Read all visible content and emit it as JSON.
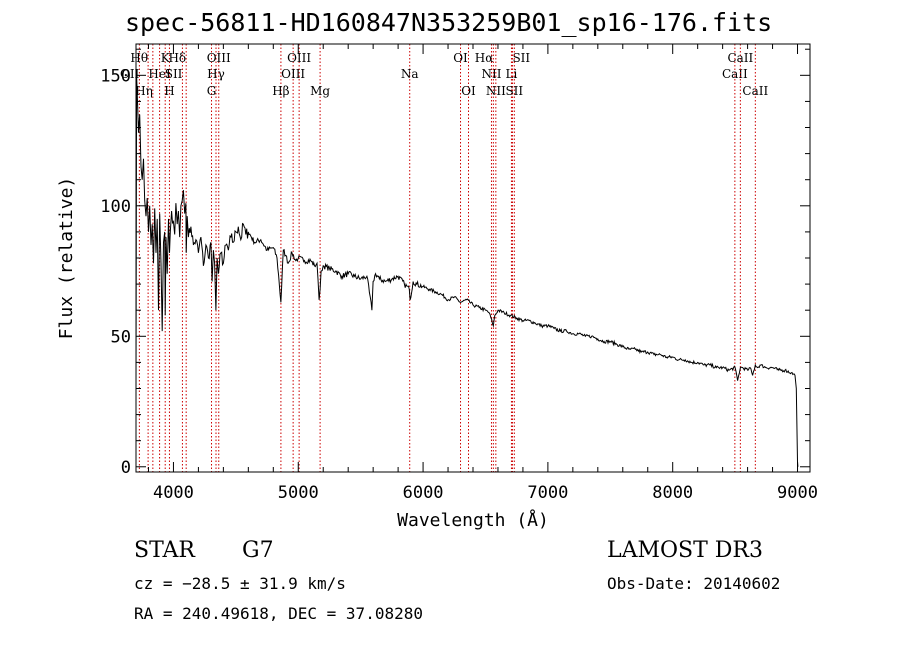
{
  "chart_data": {
    "type": "line",
    "title": "spec-56811-HD160847N353259B01_sp16-176.fits",
    "xlabel": "Wavelength (Å)",
    "ylabel": "Flux (relative)",
    "xlim": [
      3700,
      9100
    ],
    "ylim": [
      -2,
      162
    ],
    "x_ticks": [
      4000,
      5000,
      6000,
      7000,
      8000,
      9000
    ],
    "x_tick_labels": [
      "4000",
      "5000",
      "6000",
      "7000",
      "8000",
      "9000"
    ],
    "y_ticks": [
      0,
      50,
      100,
      150
    ],
    "y_tick_labels": [
      "0",
      "50",
      "100",
      "150"
    ],
    "grid": false,
    "series": [
      {
        "name": "Flux",
        "x": [
          3700,
          3705,
          3712,
          3720,
          3730,
          3740,
          3750,
          3760,
          3770,
          3780,
          3790,
          3800,
          3810,
          3820,
          3830,
          3840,
          3850,
          3860,
          3870,
          3880,
          3890,
          3900,
          3910,
          3920,
          3930,
          3934,
          3940,
          3950,
          3960,
          3968,
          3975,
          3985,
          4000,
          4010,
          4020,
          4030,
          4040,
          4050,
          4060,
          4070,
          4080,
          4090,
          4100,
          4102,
          4110,
          4120,
          4140,
          4160,
          4180,
          4200,
          4220,
          4240,
          4260,
          4280,
          4300,
          4310,
          4320,
          4330,
          4340,
          4350,
          4360,
          4380,
          4400,
          4420,
          4440,
          4460,
          4480,
          4500,
          4520,
          4540,
          4560,
          4580,
          4600,
          4650,
          4700,
          4750,
          4800,
          4830,
          4861,
          4880,
          4900,
          4920,
          4950,
          4980,
          5000,
          5050,
          5100,
          5130,
          5150,
          5167,
          5175,
          5183,
          5200,
          5250,
          5300,
          5350,
          5400,
          5450,
          5500,
          5550,
          5590,
          5600,
          5620,
          5650,
          5700,
          5750,
          5800,
          5850,
          5890,
          5896,
          5920,
          5950,
          6000,
          6050,
          6100,
          6150,
          6200,
          6250,
          6300,
          6350,
          6400,
          6450,
          6500,
          6530,
          6563,
          6575,
          6600,
          6650,
          6700,
          6750,
          6800,
          6850,
          6900,
          6950,
          7000,
          7050,
          7100,
          7150,
          7200,
          7250,
          7300,
          7350,
          7400,
          7450,
          7500,
          7550,
          7600,
          7650,
          7700,
          7750,
          7800,
          7850,
          7900,
          7950,
          8000,
          8050,
          8100,
          8150,
          8200,
          8250,
          8300,
          8350,
          8400,
          8450,
          8500,
          8520,
          8542,
          8560,
          8600,
          8620,
          8640,
          8662,
          8680,
          8700,
          8750,
          8800,
          8850,
          8900,
          8950,
          8980,
          8990,
          9000,
          9003
        ],
        "y": [
          30,
          150,
          140,
          128,
          135,
          115,
          110,
          118,
          102,
          96,
          103,
          90,
          100,
          85,
          93,
          78,
          99,
          82,
          95,
          60,
          97,
          78,
          52,
          86,
          90,
          58,
          88,
          74,
          95,
          82,
          90,
          98,
          94,
          89,
          101,
          93,
          98,
          88,
          100,
          102,
          106,
          97,
          101,
          82,
          96,
          88,
          92,
          85,
          87,
          82,
          88,
          77,
          85,
          80,
          86,
          71,
          83,
          78,
          60,
          80,
          74,
          82,
          78,
          85,
          83,
          88,
          86,
          90,
          92,
          87,
          93,
          89,
          90,
          86,
          87,
          83,
          84,
          80,
          63,
          83,
          81,
          78,
          82,
          79,
          80,
          79,
          79,
          77,
          78,
          64,
          68,
          75,
          77,
          76,
          75,
          73,
          74,
          73,
          72,
          73,
          60,
          71,
          74,
          72,
          71,
          72,
          73,
          70,
          68,
          64,
          71,
          70,
          69,
          68,
          67,
          66,
          64,
          65,
          63,
          64,
          62,
          61,
          60,
          59,
          54,
          58,
          60,
          59,
          58,
          57,
          56,
          56,
          55,
          54,
          54,
          53,
          52,
          52,
          51,
          51,
          50,
          50,
          49,
          48,
          48,
          47,
          46,
          45,
          45,
          44,
          44,
          43,
          43,
          42,
          42,
          41,
          41,
          40,
          40,
          39,
          39,
          38,
          38,
          37,
          38,
          33,
          38,
          38,
          37,
          38,
          35,
          39,
          38,
          39,
          38,
          38,
          37,
          37,
          36,
          35,
          30,
          2,
          0
        ]
      }
    ],
    "lines": [
      {
        "label": "OII",
        "x": 3727,
        "row": 1,
        "anchor": "end"
      },
      {
        "label": "Hθ",
        "x": 3797,
        "row": 0,
        "anchor": "end"
      },
      {
        "label": "Hη",
        "x": 3835,
        "row": 2,
        "anchor": "end"
      },
      {
        "label": "HeI",
        "x": 3889,
        "row": 1,
        "anchor": "middle"
      },
      {
        "label": "K",
        "x": 3934,
        "row": 0,
        "anchor": "middle"
      },
      {
        "label": "H",
        "x": 3968,
        "row": 2,
        "anchor": "middle"
      },
      {
        "label": "SII",
        "x": 4072,
        "row": 1,
        "anchor": "end"
      },
      {
        "label": "Hδ",
        "x": 4102,
        "row": 0,
        "anchor": "end"
      },
      {
        "label": "G",
        "x": 4305,
        "row": 2,
        "anchor": "middle"
      },
      {
        "label": "Hγ",
        "x": 4341,
        "row": 1,
        "anchor": "middle"
      },
      {
        "label": "OIII",
        "x": 4363,
        "row": 0,
        "anchor": "middle"
      },
      {
        "label": "Hβ",
        "x": 4861,
        "row": 2,
        "anchor": "middle"
      },
      {
        "label": "OIII",
        "x": 4959,
        "row": 1,
        "anchor": "middle"
      },
      {
        "label": "OIII",
        "x": 5007,
        "row": 0,
        "anchor": "middle"
      },
      {
        "label": "Mg",
        "x": 5175,
        "row": 2,
        "anchor": "middle"
      },
      {
        "label": "Na",
        "x": 5893,
        "row": 1,
        "anchor": "middle"
      },
      {
        "label": "OI",
        "x": 6300,
        "row": 0,
        "anchor": "middle"
      },
      {
        "label": "OI",
        "x": 6364,
        "row": 2,
        "anchor": "middle"
      },
      {
        "label": "NII",
        "x": 6548,
        "row": 1,
        "anchor": "middle"
      },
      {
        "label": "Hα",
        "x": 6563,
        "row": 0,
        "anchor": "end"
      },
      {
        "label": "NII",
        "x": 6583,
        "row": 2,
        "anchor": "middle"
      },
      {
        "label": "Li",
        "x": 6708,
        "row": 1,
        "anchor": "middle"
      },
      {
        "label": "SII",
        "x": 6716,
        "row": 0,
        "anchor": "start"
      },
      {
        "label": "SII",
        "x": 6731,
        "row": 2,
        "anchor": "middle"
      },
      {
        "label": "CaII",
        "x": 8498,
        "row": 1,
        "anchor": "middle"
      },
      {
        "label": "CaII",
        "x": 8542,
        "row": 0,
        "anchor": "middle"
      },
      {
        "label": "CaII",
        "x": 8662,
        "row": 2,
        "anchor": "middle"
      }
    ]
  },
  "footer": {
    "object_class": "STAR",
    "subclass": "G7",
    "cz": "cz = −28.5 ± 31.9 km/s",
    "coords": "RA = 240.49618, DEC =  37.08280",
    "survey": "LAMOST DR3",
    "obs_date": "Obs-Date: 20140602"
  },
  "colors": {
    "line_marker": "#cc0000",
    "spectrum": "#000000",
    "axes": "#000000",
    "background": "#ffffff"
  }
}
